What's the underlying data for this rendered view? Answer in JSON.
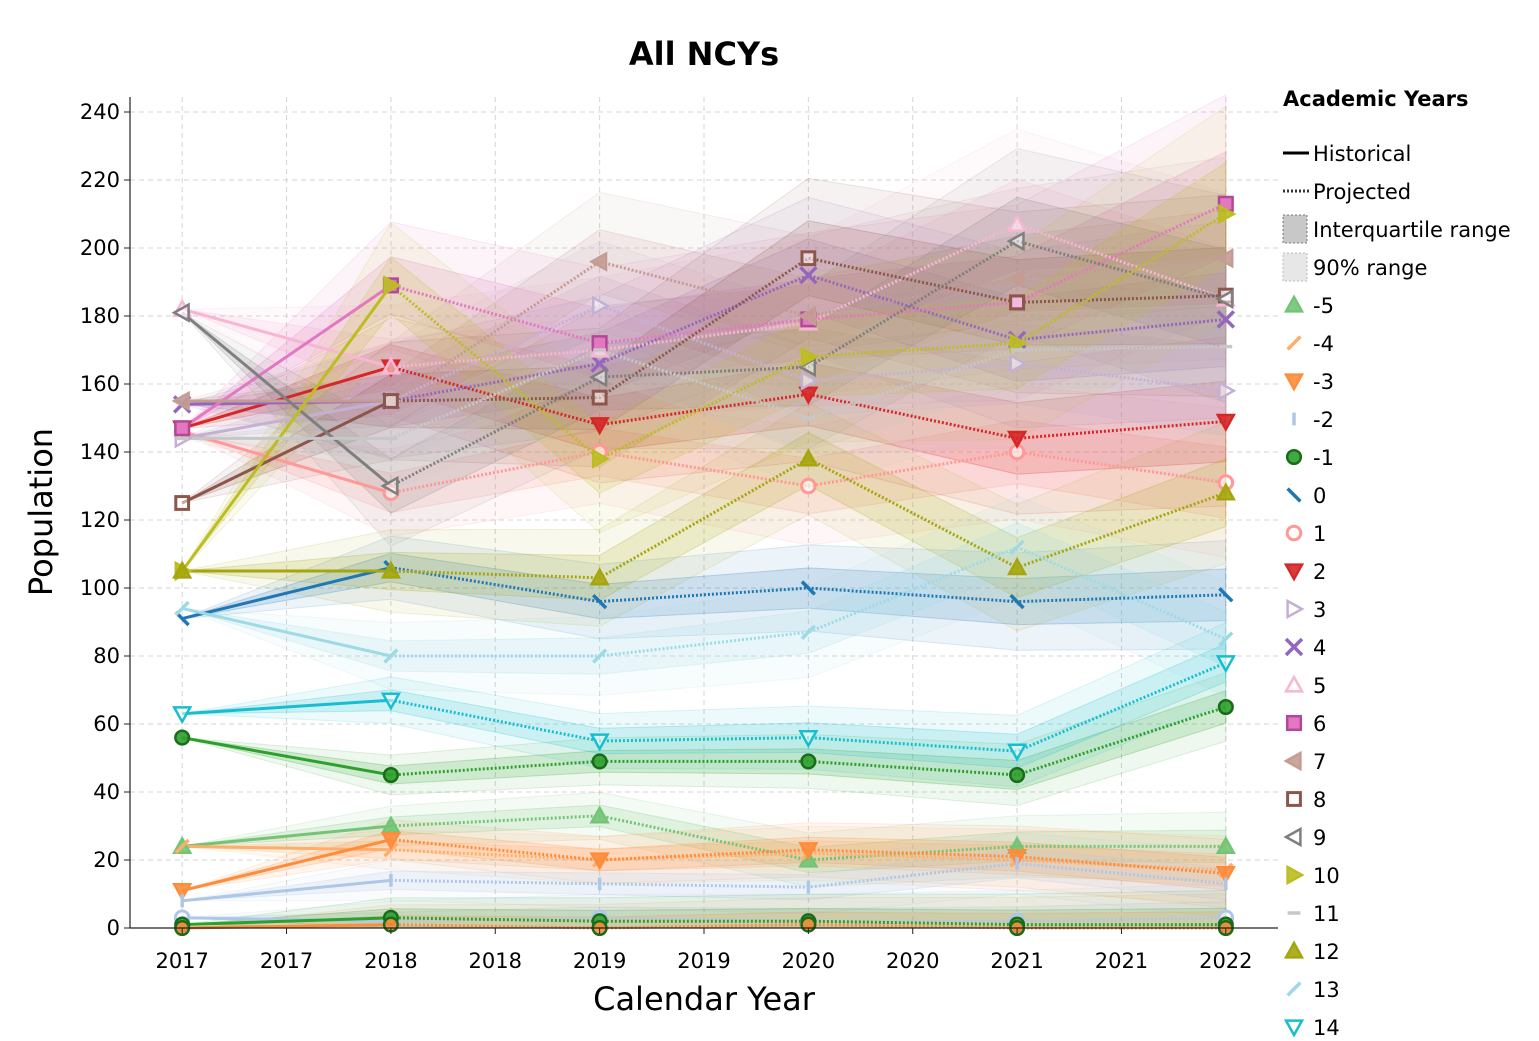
{
  "chart_data": {
    "type": "line",
    "title": "All NCYs",
    "xlabel": "Calendar Year",
    "ylabel": "Population",
    "x": [
      2017,
      2018,
      2019,
      2020,
      2021,
      2022
    ],
    "x_tick_labels": [
      "2017",
      "2017",
      "2018",
      "2018",
      "2019",
      "2019",
      "2020",
      "2020",
      "2021",
      "2021",
      "2022"
    ],
    "y_tick_labels": [
      "0",
      "20",
      "40",
      "60",
      "80",
      "100",
      "120",
      "140",
      "160",
      "180",
      "200",
      "220",
      "240"
    ],
    "ylim": [
      0,
      240
    ],
    "xlim": [
      2016.75,
      2022.25
    ],
    "grid": true,
    "legend": {
      "title": "Academic Years",
      "placement": "right",
      "style_entries": [
        "Historical",
        "Projected",
        "Interquartile range",
        "90% range"
      ]
    },
    "series": [
      {
        "name": "-5",
        "color": "#74c476",
        "marker": "triangle-up",
        "values": [
          24,
          30,
          33,
          20,
          24,
          24
        ]
      },
      {
        "name": "-4",
        "color": "#fdae6b",
        "marker": "slash",
        "values": [
          24,
          23,
          20,
          22,
          20,
          17
        ]
      },
      {
        "name": "-3",
        "color": "#fd8d3c",
        "marker": "triangle-down",
        "values": [
          11,
          26,
          20,
          23,
          21,
          16
        ]
      },
      {
        "name": "-2",
        "color": "#aec7e8",
        "marker": "vline",
        "values": [
          8,
          14,
          13,
          12,
          19,
          13
        ]
      },
      {
        "name": "-1",
        "color": "#2ca02c",
        "marker": "circle",
        "values": [
          56,
          45,
          49,
          49,
          45,
          65
        ]
      },
      {
        "name": "0",
        "color": "#1f77b4",
        "marker": "backslash",
        "values": [
          91,
          106,
          96,
          100,
          96,
          98
        ]
      },
      {
        "name": "1",
        "color": "#ff9896",
        "marker": "circle-open",
        "values": [
          146,
          128,
          140,
          130,
          140,
          131
        ]
      },
      {
        "name": "2",
        "color": "#d62728",
        "marker": "triangle-down",
        "values": [
          147,
          165,
          148,
          157,
          144,
          149
        ]
      },
      {
        "name": "3",
        "color": "#c5b0d5",
        "marker": "triangle-right-open",
        "values": [
          144,
          155,
          183,
          161,
          166,
          158
        ]
      },
      {
        "name": "4",
        "color": "#9467bd",
        "marker": "x",
        "values": [
          154,
          155,
          166,
          192,
          173,
          179
        ]
      },
      {
        "name": "5",
        "color": "#f7b6d2",
        "marker": "triangle-up-open",
        "values": [
          182,
          165,
          170,
          178,
          207,
          185
        ]
      },
      {
        "name": "6",
        "color": "#e377c2",
        "marker": "square",
        "values": [
          147,
          189,
          172,
          179,
          184,
          213
        ]
      },
      {
        "name": "7",
        "color": "#c49c94",
        "marker": "triangle-left",
        "values": [
          155,
          155,
          196,
          180,
          191,
          197
        ]
      },
      {
        "name": "8",
        "color": "#8c564b",
        "marker": "square-open",
        "values": [
          125,
          155,
          156,
          197,
          184,
          186
        ]
      },
      {
        "name": "9",
        "color": "#7f7f7f",
        "marker": "triangle-left-open",
        "values": [
          181,
          130,
          162,
          165,
          202,
          185
        ]
      },
      {
        "name": "10",
        "color": "#bcbd22",
        "marker": "triangle-right",
        "values": [
          105,
          189,
          138,
          168,
          172,
          210
        ]
      },
      {
        "name": "11",
        "color": "#c7c7c7",
        "marker": "hline",
        "values": [
          144,
          144,
          170,
          150,
          170,
          171
        ]
      },
      {
        "name": "12",
        "color": "#a5a60e",
        "marker": "triangle-up",
        "values": [
          105,
          105,
          103,
          138,
          106,
          128
        ]
      },
      {
        "name": "13",
        "color": "#9edae5",
        "marker": "slash",
        "values": [
          94,
          80,
          80,
          87,
          112,
          85
        ]
      },
      {
        "name": "14",
        "color": "#17becf",
        "marker": "triangle-down-open",
        "values": [
          63,
          67,
          55,
          56,
          52,
          78
        ]
      }
    ],
    "near_zero_series": [
      {
        "color": "#aec7e8",
        "marker": "circle-open",
        "values": [
          3,
          2,
          3,
          2,
          2,
          3
        ]
      },
      {
        "color": "#2ca02c",
        "marker": "circle",
        "values": [
          1,
          3,
          2,
          2,
          1,
          1
        ]
      },
      {
        "color": "#fd8d3c",
        "marker": "circle",
        "values": [
          0,
          1,
          0,
          1,
          0,
          0
        ]
      }
    ]
  }
}
